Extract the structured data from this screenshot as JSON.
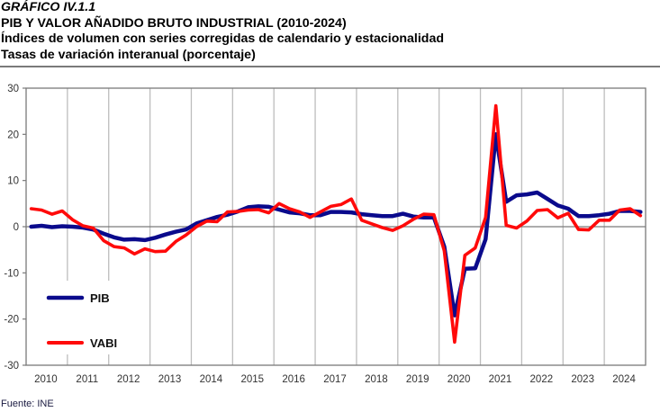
{
  "header": {
    "label": "GRÁFICO IV.1.1",
    "title": "PIB Y VALOR AÑADIDO BRUTO INDUSTRIAL (2010-2024)",
    "subtitle1": "Índices de volumen con series corregidas de calendario y estacionalidad",
    "subtitle2": "Tasas de variación interanual (porcentaje)"
  },
  "source": "Fuente: INE",
  "chart_data": {
    "type": "line",
    "title": "PIB Y VALOR AÑADIDO BRUTO INDUSTRIAL (2010-2024)",
    "xlabel": "",
    "ylabel": "",
    "ylim": [
      -30,
      30
    ],
    "yticks": [
      30,
      20,
      10,
      0,
      -10,
      -20,
      -30
    ],
    "xtick_labels": [
      "2010",
      "2011",
      "2012",
      "2013",
      "2014",
      "2015",
      "2016",
      "2017",
      "2018",
      "2019",
      "2020",
      "2021",
      "2022",
      "2023",
      "2024"
    ],
    "x_frequency": "quarterly",
    "grid": "vertical lines at year boundaries; horizontal line at 0",
    "legend_position": "bottom-left",
    "colors": {
      "PIB": "#0a0a8c",
      "VABI": "#ff0a0a",
      "axis": "#7a7a7a",
      "grid": "#bdbdbd"
    },
    "series": [
      {
        "name": "PIB",
        "values": [
          0.0,
          0.2,
          -0.1,
          0.1,
          0.0,
          -0.2,
          -0.6,
          -1.5,
          -2.3,
          -2.8,
          -2.7,
          -2.9,
          -2.4,
          -1.7,
          -1.1,
          -0.6,
          0.7,
          1.4,
          2.1,
          2.6,
          3.3,
          4.2,
          4.4,
          4.3,
          3.7,
          3.1,
          2.9,
          2.5,
          2.5,
          3.2,
          3.2,
          3.1,
          2.7,
          2.5,
          2.3,
          2.3,
          2.8,
          2.2,
          2.0,
          2.0,
          -4.3,
          -19.2,
          -9.1,
          -9.0,
          -2.7,
          20.0,
          5.4,
          6.8,
          7.0,
          7.4,
          6.0,
          4.6,
          3.9,
          2.3,
          2.3,
          2.5,
          2.8,
          3.4,
          3.4,
          3.2
        ]
      },
      {
        "name": "VABI",
        "values": [
          3.9,
          3.6,
          2.7,
          3.4,
          1.5,
          0.2,
          -0.3,
          -3.0,
          -4.3,
          -4.6,
          -5.9,
          -4.8,
          -5.4,
          -5.3,
          -3.2,
          -1.8,
          0.0,
          1.2,
          1.1,
          3.2,
          3.3,
          3.6,
          3.7,
          3.0,
          5.0,
          3.9,
          3.2,
          2.0,
          3.2,
          4.4,
          4.8,
          6.0,
          1.4,
          0.6,
          -0.2,
          -0.8,
          0.2,
          1.6,
          2.7,
          2.6,
          -5.2,
          -25.0,
          -6.2,
          -4.6,
          2.0,
          26.2,
          0.3,
          -0.3,
          1.2,
          3.5,
          3.7,
          1.9,
          2.9,
          -0.6,
          -0.7,
          1.4,
          1.4,
          3.6,
          3.9,
          2.4
        ]
      }
    ]
  }
}
